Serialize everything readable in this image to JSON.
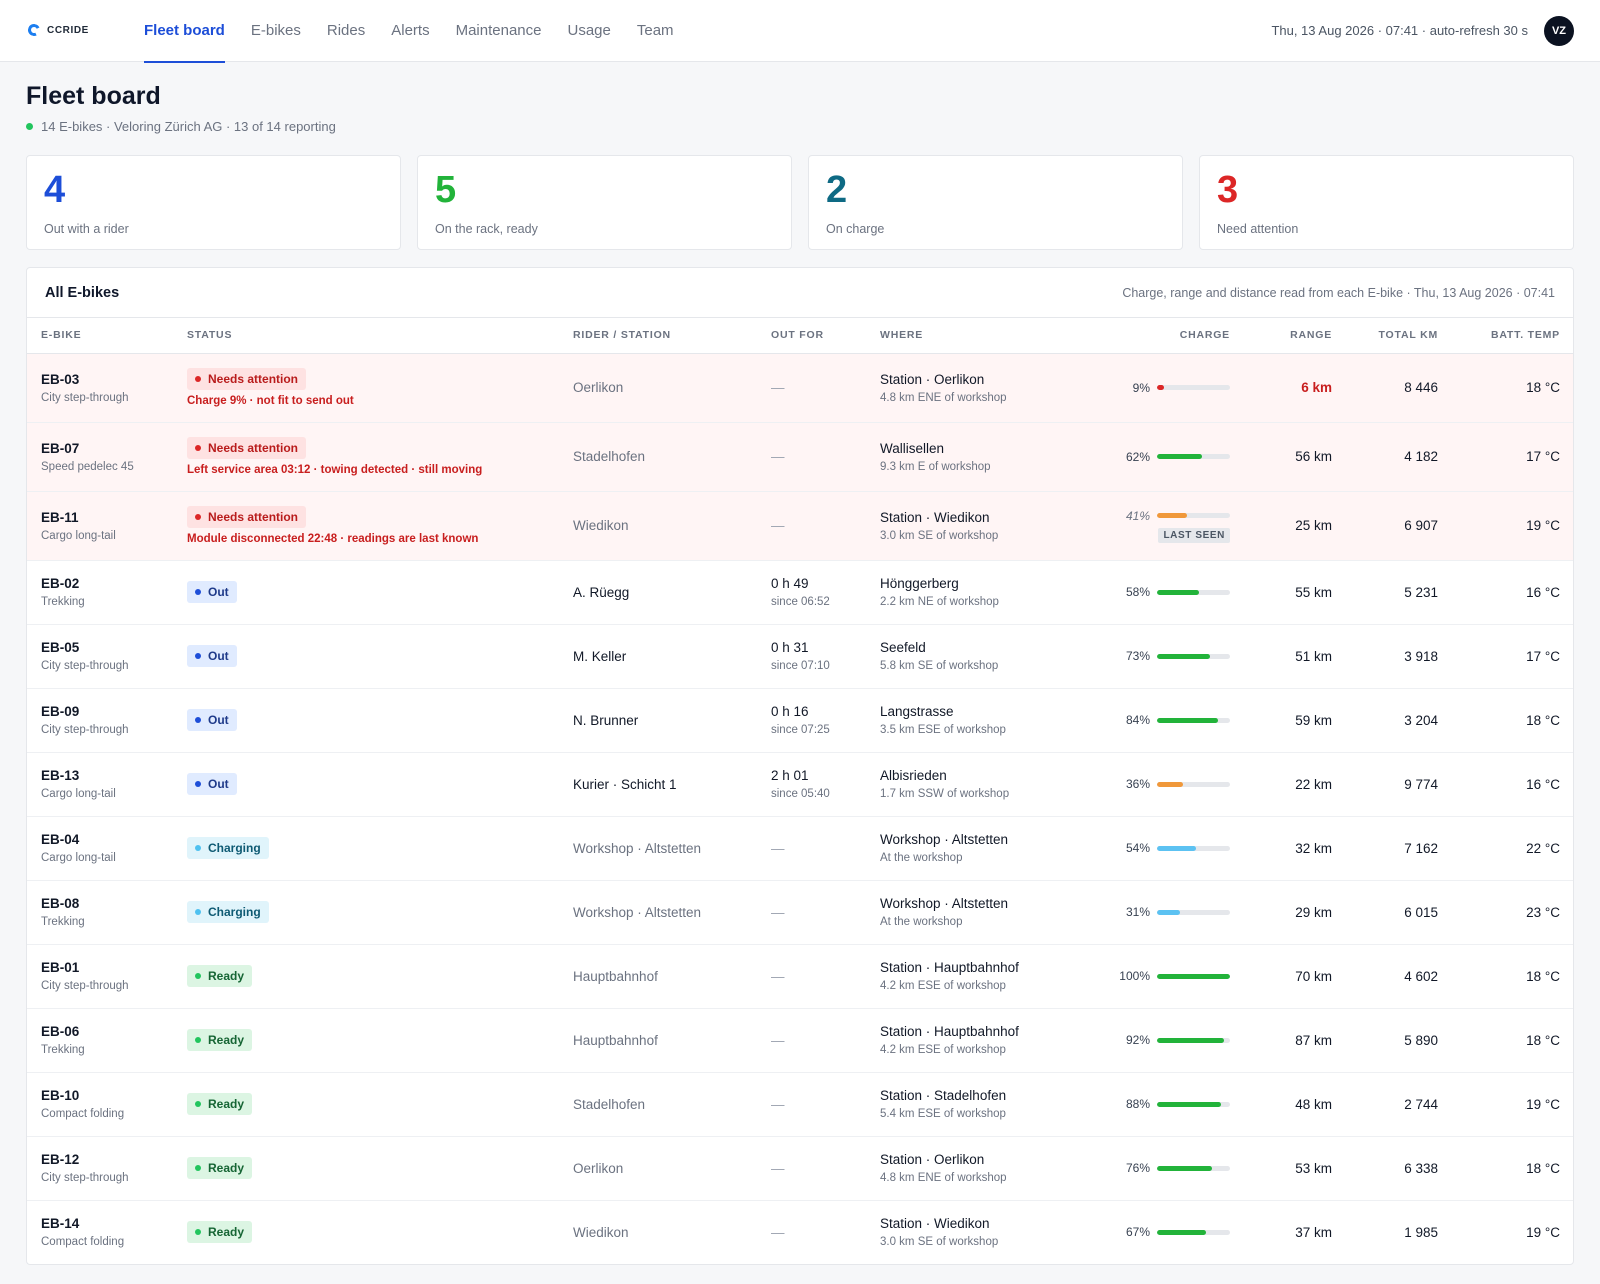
{
  "brand": {
    "name": "CCRIDE",
    "accent": "#1d4ed8"
  },
  "nav": {
    "items": [
      {
        "label": "Fleet board",
        "active": true
      },
      {
        "label": "E-bikes",
        "active": false
      },
      {
        "label": "Rides",
        "active": false
      },
      {
        "label": "Alerts",
        "active": false
      },
      {
        "label": "Maintenance",
        "active": false
      },
      {
        "label": "Usage",
        "active": false
      },
      {
        "label": "Team",
        "active": false
      }
    ],
    "status": "Thu, 13 Aug 2026 · 07:41 · auto-refresh 30 s",
    "avatar": "VZ"
  },
  "page": {
    "title": "Fleet board",
    "subtitle": "14 E-bikes · Veloring Zürich AG · 13 of 14 reporting"
  },
  "kpis": [
    {
      "value": "4",
      "label": "Out with a rider",
      "color": "#1d4ed8"
    },
    {
      "value": "5",
      "label": "On the rack, ready",
      "color": "#22b33a"
    },
    {
      "value": "2",
      "label": "On charge",
      "color": "#0e6a84"
    },
    {
      "value": "3",
      "label": "Need attention",
      "color": "#dc2626"
    }
  ],
  "table": {
    "title": "All E-bikes",
    "note": "Charge, range and distance read from each E-bike · Thu, 13 Aug 2026 · 07:41",
    "columns": {
      "bike": "E-BIKE",
      "status": "STATUS",
      "rider": "RIDER / STATION",
      "out": "OUT FOR",
      "where": "WHERE",
      "charge": "CHARGE",
      "range": "RANGE",
      "km": "TOTAL KM",
      "temp": "BATT. TEMP"
    },
    "rows": [
      {
        "id": "EB-03",
        "type": "City step-through",
        "status": "Needs attention",
        "kind": "attention",
        "note": "Charge 9% · not fit to send out",
        "rider": "Oerlikon",
        "rider_muted": true,
        "out": "—",
        "out_since": "",
        "where": "Station · Oerlikon",
        "where_sub": "4.8 km ENE of workshop",
        "charge": 9,
        "charge_label": "9%",
        "charge_color": "#dc2626",
        "last_seen": "",
        "range": "6 km",
        "range_red": true,
        "km": "8 446",
        "temp": "18 °C"
      },
      {
        "id": "EB-07",
        "type": "Speed pedelec 45",
        "status": "Needs attention",
        "kind": "attention",
        "note": "Left service area 03:12 · towing detected · still moving",
        "rider": "Stadelhofen",
        "rider_muted": true,
        "out": "—",
        "out_since": "",
        "where": "Wallisellen",
        "where_sub": "9.3 km E of workshop",
        "charge": 62,
        "charge_label": "62%",
        "charge_color": "#22b33a",
        "last_seen": "",
        "range": "56 km",
        "range_red": false,
        "km": "4 182",
        "temp": "17 °C"
      },
      {
        "id": "EB-11",
        "type": "Cargo long-tail",
        "status": "Needs attention",
        "kind": "attention",
        "note": "Module disconnected 22:48 · readings are last known",
        "rider": "Wiedikon",
        "rider_muted": true,
        "out": "—",
        "out_since": "",
        "where": "Station · Wiedikon",
        "where_sub": "3.0 km SE of workshop",
        "charge": 41,
        "charge_label": "41%",
        "charge_color": "#f0983a",
        "last_seen": "LAST SEEN",
        "range": "25 km",
        "range_red": false,
        "km": "6 907",
        "temp": "19 °C"
      },
      {
        "id": "EB-02",
        "type": "Trekking",
        "status": "Out",
        "kind": "out",
        "note": "",
        "rider": "A. Rüegg",
        "rider_muted": false,
        "out": "0 h 49",
        "out_since": "since 06:52",
        "where": "Hönggerberg",
        "where_sub": "2.2 km NE of workshop",
        "charge": 58,
        "charge_label": "58%",
        "charge_color": "#22b33a",
        "last_seen": "",
        "range": "55 km",
        "range_red": false,
        "km": "5 231",
        "temp": "16 °C"
      },
      {
        "id": "EB-05",
        "type": "City step-through",
        "status": "Out",
        "kind": "out",
        "note": "",
        "rider": "M. Keller",
        "rider_muted": false,
        "out": "0 h 31",
        "out_since": "since 07:10",
        "where": "Seefeld",
        "where_sub": "5.8 km SE of workshop",
        "charge": 73,
        "charge_label": "73%",
        "charge_color": "#22b33a",
        "last_seen": "",
        "range": "51 km",
        "range_red": false,
        "km": "3 918",
        "temp": "17 °C"
      },
      {
        "id": "EB-09",
        "type": "City step-through",
        "status": "Out",
        "kind": "out",
        "note": "",
        "rider": "N. Brunner",
        "rider_muted": false,
        "out": "0 h 16",
        "out_since": "since 07:25",
        "where": "Langstrasse",
        "where_sub": "3.5 km ESE of workshop",
        "charge": 84,
        "charge_label": "84%",
        "charge_color": "#22b33a",
        "last_seen": "",
        "range": "59 km",
        "range_red": false,
        "km": "3 204",
        "temp": "18 °C"
      },
      {
        "id": "EB-13",
        "type": "Cargo long-tail",
        "status": "Out",
        "kind": "out",
        "note": "",
        "rider": "Kurier · Schicht 1",
        "rider_muted": false,
        "out": "2 h 01",
        "out_since": "since 05:40",
        "where": "Albisrieden",
        "where_sub": "1.7 km SSW of workshop",
        "charge": 36,
        "charge_label": "36%",
        "charge_color": "#f0983a",
        "last_seen": "",
        "range": "22 km",
        "range_red": false,
        "km": "9 774",
        "temp": "16 °C"
      },
      {
        "id": "EB-04",
        "type": "Cargo long-tail",
        "status": "Charging",
        "kind": "charging",
        "note": "",
        "rider": "Workshop · Altstetten",
        "rider_muted": true,
        "out": "—",
        "out_since": "",
        "where": "Workshop · Altstetten",
        "where_sub": "At the workshop",
        "charge": 54,
        "charge_label": "54%",
        "charge_color": "#5cc2f2",
        "last_seen": "",
        "range": "32 km",
        "range_red": false,
        "km": "7 162",
        "temp": "22 °C"
      },
      {
        "id": "EB-08",
        "type": "Trekking",
        "status": "Charging",
        "kind": "charging",
        "note": "",
        "rider": "Workshop · Altstetten",
        "rider_muted": true,
        "out": "—",
        "out_since": "",
        "where": "Workshop · Altstetten",
        "where_sub": "At the workshop",
        "charge": 31,
        "charge_label": "31%",
        "charge_color": "#5cc2f2",
        "last_seen": "",
        "range": "29 km",
        "range_red": false,
        "km": "6 015",
        "temp": "23 °C"
      },
      {
        "id": "EB-01",
        "type": "City step-through",
        "status": "Ready",
        "kind": "ready",
        "note": "",
        "rider": "Hauptbahnhof",
        "rider_muted": true,
        "out": "—",
        "out_since": "",
        "where": "Station · Hauptbahnhof",
        "where_sub": "4.2 km ESE of workshop",
        "charge": 100,
        "charge_label": "100%",
        "charge_color": "#22b33a",
        "last_seen": "",
        "range": "70 km",
        "range_red": false,
        "km": "4 602",
        "temp": "18 °C"
      },
      {
        "id": "EB-06",
        "type": "Trekking",
        "status": "Ready",
        "kind": "ready",
        "note": "",
        "rider": "Hauptbahnhof",
        "rider_muted": true,
        "out": "—",
        "out_since": "",
        "where": "Station · Hauptbahnhof",
        "where_sub": "4.2 km ESE of workshop",
        "charge": 92,
        "charge_label": "92%",
        "charge_color": "#22b33a",
        "last_seen": "",
        "range": "87 km",
        "range_red": false,
        "km": "5 890",
        "temp": "18 °C"
      },
      {
        "id": "EB-10",
        "type": "Compact folding",
        "status": "Ready",
        "kind": "ready",
        "note": "",
        "rider": "Stadelhofen",
        "rider_muted": true,
        "out": "—",
        "out_since": "",
        "where": "Station · Stadelhofen",
        "where_sub": "5.4 km ESE of workshop",
        "charge": 88,
        "charge_label": "88%",
        "charge_color": "#22b33a",
        "last_seen": "",
        "range": "48 km",
        "range_red": false,
        "km": "2 744",
        "temp": "19 °C"
      },
      {
        "id": "EB-12",
        "type": "City step-through",
        "status": "Ready",
        "kind": "ready",
        "note": "",
        "rider": "Oerlikon",
        "rider_muted": true,
        "out": "—",
        "out_since": "",
        "where": "Station · Oerlikon",
        "where_sub": "4.8 km ENE of workshop",
        "charge": 76,
        "charge_label": "76%",
        "charge_color": "#22b33a",
        "last_seen": "",
        "range": "53 km",
        "range_red": false,
        "km": "6 338",
        "temp": "18 °C"
      },
      {
        "id": "EB-14",
        "type": "Compact folding",
        "status": "Ready",
        "kind": "ready",
        "note": "",
        "rider": "Wiedikon",
        "rider_muted": true,
        "out": "—",
        "out_since": "",
        "where": "Station · Wiedikon",
        "where_sub": "3.0 km SE of workshop",
        "charge": 67,
        "charge_label": "67%",
        "charge_color": "#22b33a",
        "last_seen": "",
        "range": "37 km",
        "range_red": false,
        "km": "1 985",
        "temp": "19 °C"
      }
    ]
  }
}
